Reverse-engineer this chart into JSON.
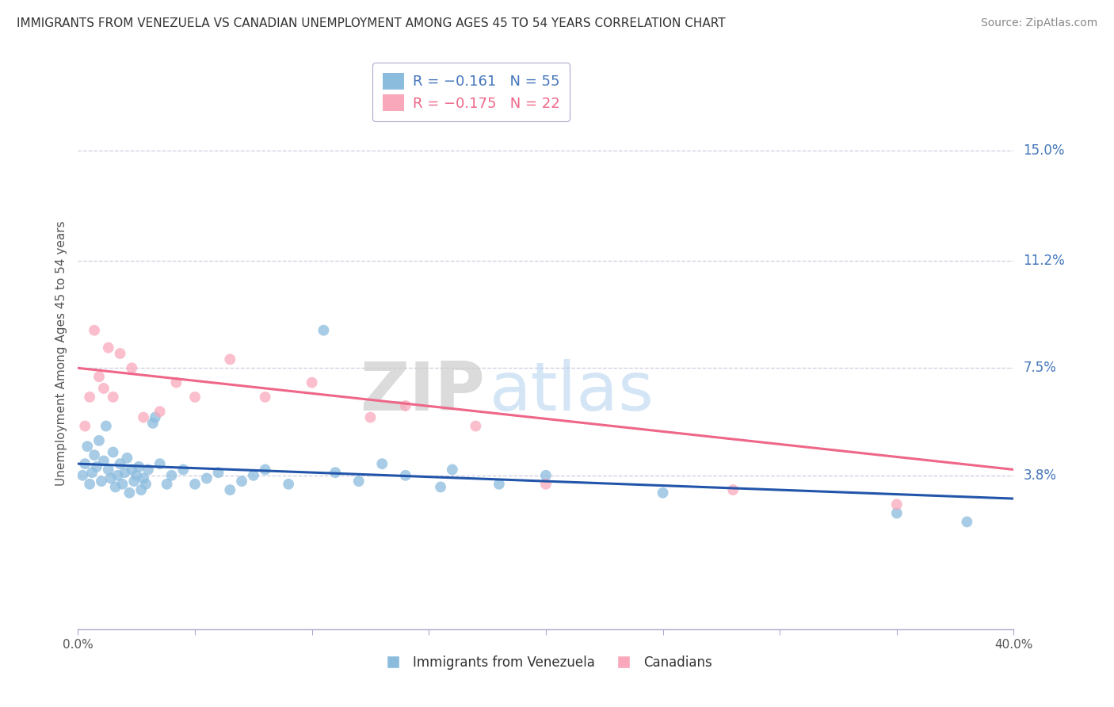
{
  "title": "IMMIGRANTS FROM VENEZUELA VS CANADIAN UNEMPLOYMENT AMONG AGES 45 TO 54 YEARS CORRELATION CHART",
  "source": "Source: ZipAtlas.com",
  "ylabel": "Unemployment Among Ages 45 to 54 years",
  "ytick_labels": [
    "15.0%",
    "11.2%",
    "7.5%",
    "3.8%"
  ],
  "ytick_values": [
    15.0,
    11.2,
    7.5,
    3.8
  ],
  "xlim": [
    0.0,
    40.0
  ],
  "ylim": [
    -1.5,
    17.5
  ],
  "legend1_label": "R = −0.161   N = 55",
  "legend2_label": "R = −0.175   N = 22",
  "legend1_color": "#8BBCDE",
  "legend2_color": "#F9A8BC",
  "trend1_color": "#2255AA",
  "trend2_color": "#EE6688",
  "background_color": "#FFFFFF",
  "grid_color": "#C8C8DC",
  "axis_color": "#AAAACC",
  "label_color": "#4477BB",
  "title_color": "#333333",
  "source_color": "#888888",
  "blue_x": [
    0.2,
    0.3,
    0.4,
    0.5,
    0.6,
    0.7,
    0.8,
    0.9,
    1.0,
    1.1,
    1.2,
    1.3,
    1.4,
    1.5,
    1.6,
    1.7,
    1.8,
    1.9,
    2.0,
    2.1,
    2.2,
    2.3,
    2.4,
    2.5,
    2.6,
    2.7,
    2.8,
    2.9,
    3.0,
    3.2,
    3.3,
    3.5,
    3.8,
    4.0,
    4.5,
    5.0,
    5.5,
    6.0,
    6.5,
    7.0,
    7.5,
    8.0,
    9.0,
    10.5,
    11.0,
    12.0,
    13.0,
    14.0,
    15.5,
    16.0,
    18.0,
    20.0,
    25.0,
    35.0,
    38.0
  ],
  "blue_y": [
    3.8,
    4.2,
    4.8,
    3.5,
    3.9,
    4.5,
    4.1,
    5.0,
    3.6,
    4.3,
    5.5,
    4.0,
    3.7,
    4.6,
    3.4,
    3.8,
    4.2,
    3.5,
    3.9,
    4.4,
    3.2,
    4.0,
    3.6,
    3.8,
    4.1,
    3.3,
    3.7,
    3.5,
    4.0,
    5.6,
    5.8,
    4.2,
    3.5,
    3.8,
    4.0,
    3.5,
    3.7,
    3.9,
    3.3,
    3.6,
    3.8,
    4.0,
    3.5,
    8.8,
    3.9,
    3.6,
    4.2,
    3.8,
    3.4,
    4.0,
    3.5,
    3.8,
    3.2,
    2.5,
    2.2
  ],
  "pink_x": [
    0.3,
    0.5,
    0.7,
    0.9,
    1.1,
    1.3,
    1.5,
    1.8,
    2.3,
    2.8,
    3.5,
    4.2,
    5.0,
    6.5,
    8.0,
    10.0,
    12.5,
    14.0,
    17.0,
    20.0,
    28.0,
    35.0
  ],
  "pink_y": [
    5.5,
    6.5,
    8.8,
    7.2,
    6.8,
    8.2,
    6.5,
    8.0,
    7.5,
    5.8,
    6.0,
    7.0,
    6.5,
    7.8,
    6.5,
    7.0,
    5.8,
    6.2,
    5.5,
    3.5,
    3.3,
    2.8
  ],
  "xtick_positions": [
    0,
    5,
    10,
    15,
    20,
    25,
    30,
    35,
    40
  ],
  "xtick_labels_show": {
    "0": "0.0%",
    "40": "40.0%"
  }
}
